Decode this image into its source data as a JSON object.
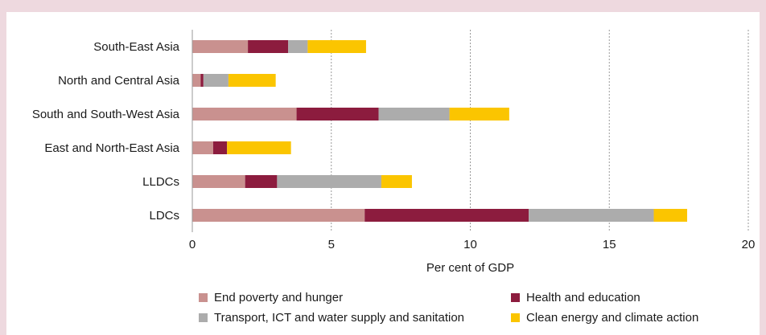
{
  "chart_data": {
    "type": "bar",
    "orientation": "horizontal",
    "stacked": true,
    "categories": [
      "South-East Asia",
      "North and Central Asia",
      "South and South-West Asia",
      "East and North-East Asia",
      "LLDCs",
      "LDCs"
    ],
    "series": [
      {
        "name": "End poverty and hunger",
        "color": "#c9918f",
        "values": [
          2.0,
          0.3,
          3.75,
          0.75,
          1.9,
          6.2
        ]
      },
      {
        "name": "Health and education",
        "color": "#8c1c3e",
        "values": [
          1.45,
          0.1,
          2.95,
          0.5,
          1.15,
          5.9
        ]
      },
      {
        "name": "Transport, ICT and water supply and sanitation",
        "color": "#acacac",
        "values": [
          0.7,
          0.9,
          2.55,
          0.0,
          3.75,
          4.5
        ]
      },
      {
        "name": "Clean energy and climate action",
        "color": "#fbc500",
        "values": [
          2.1,
          1.7,
          2.15,
          2.3,
          1.1,
          1.2
        ]
      }
    ],
    "xlabel": "Per cent of GDP",
    "xlim": [
      0,
      20
    ],
    "xticks": [
      "0",
      "5",
      "10",
      "15",
      "20"
    ],
    "grid": "vertical dotted",
    "legend_position": "bottom"
  }
}
